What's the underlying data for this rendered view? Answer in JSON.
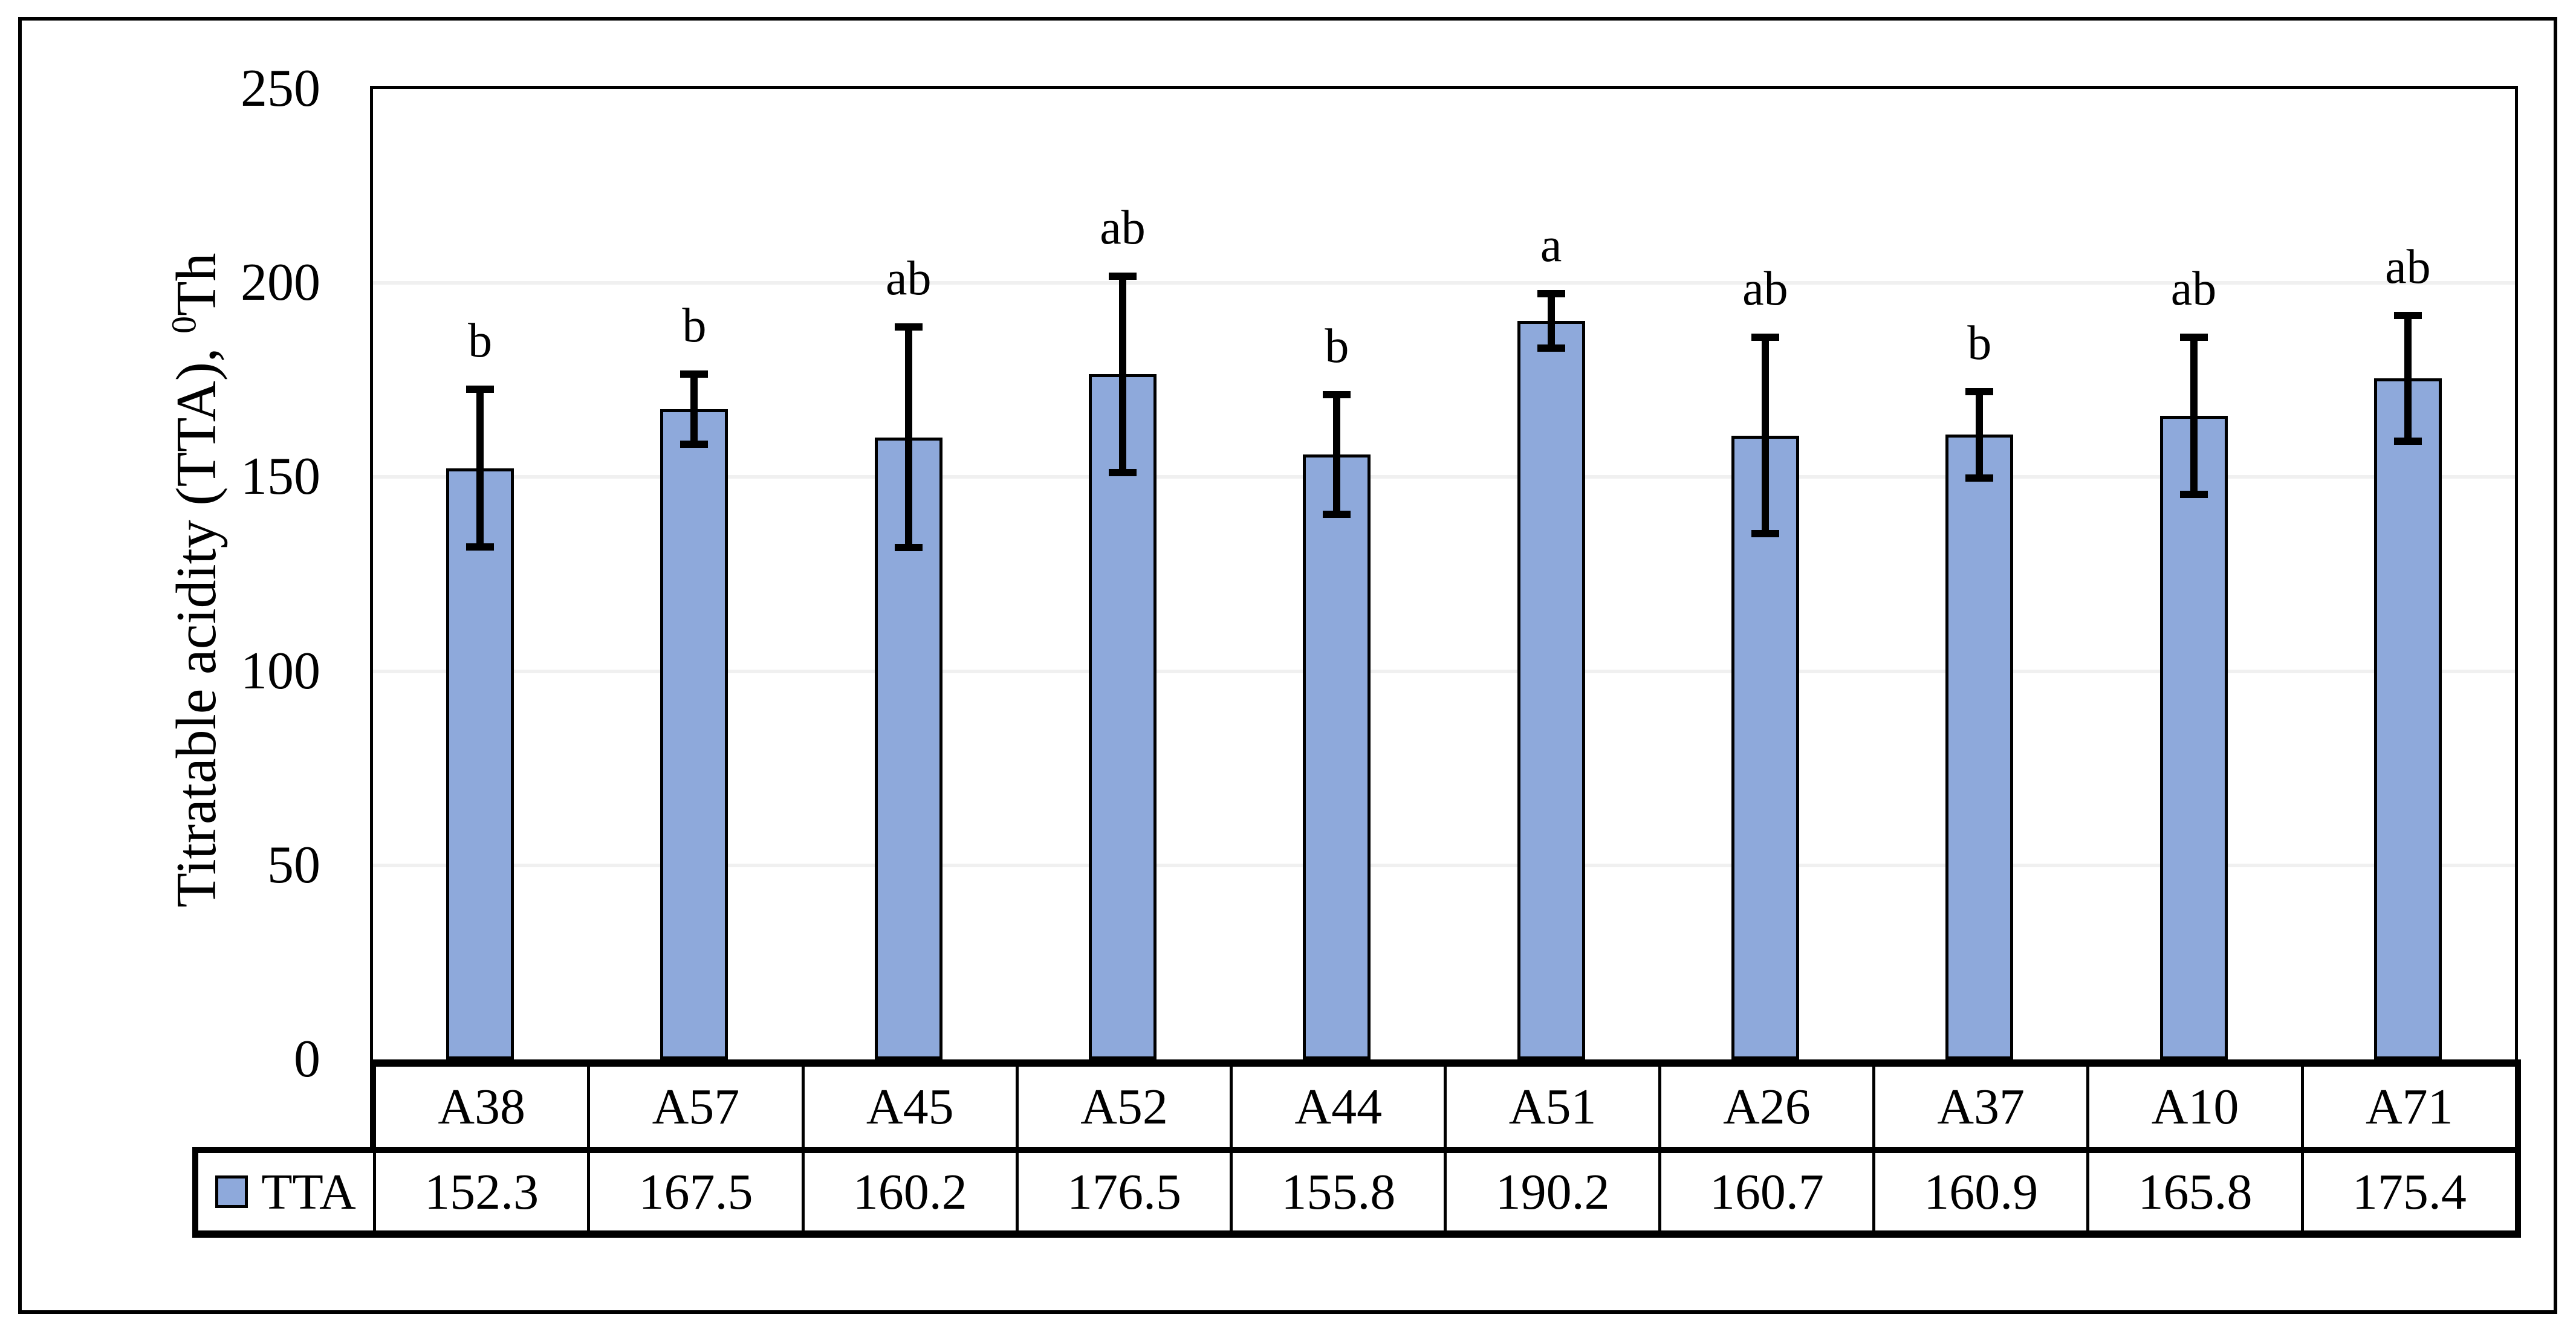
{
  "chart_data": {
    "type": "bar",
    "title": "",
    "ylabel": {
      "prefix": "Titratable acidity (TTA), ",
      "sup": "0",
      "suffix": "Th"
    },
    "ylim": [
      0,
      250
    ],
    "ytick_labels": [
      "0",
      "50",
      "100",
      "150",
      "200",
      "250"
    ],
    "grid": {
      "show": true,
      "orientation": "horizontal",
      "interval": 50
    },
    "categories": [
      "A38",
      "A57",
      "A45",
      "A52",
      "A44",
      "A51",
      "A26",
      "A37",
      "A10",
      "A71"
    ],
    "series": [
      {
        "name": "TTA",
        "values": [
          152.3,
          167.5,
          160.2,
          176.5,
          155.8,
          190.2,
          160.7,
          160.9,
          165.8,
          175.4
        ],
        "error_bars": [
          20.3,
          9.0,
          28.4,
          25.3,
          15.4,
          7.0,
          25.3,
          11.1,
          20.2,
          16.2
        ],
        "significance_letters": [
          "b",
          "b",
          "ab",
          "ab",
          "b",
          "a",
          "ab",
          "b",
          "ab",
          "ab"
        ]
      }
    ],
    "data_table": {
      "legend_label": "TTA",
      "value_labels": [
        "152.3",
        "167.5",
        "160.2",
        "176.5",
        "155.8",
        "190.2",
        "160.7",
        "160.9",
        "165.8",
        "175.4"
      ]
    },
    "legend": {
      "label": "TTA",
      "position": "bottom-left-table-cell"
    },
    "colors": {
      "bar_fill": "#8EA9DB",
      "bar_border": "#000000",
      "error_bar": "#000000",
      "gridline": "#F0F0F0",
      "axis_and_table_lines": "#000000",
      "background": "#FFFFFF"
    }
  }
}
